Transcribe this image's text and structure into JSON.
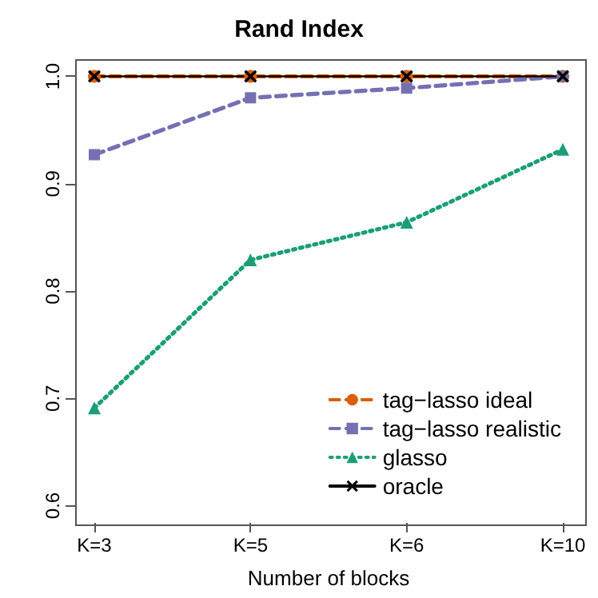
{
  "chart_data": {
    "type": "line",
    "title": "Rand Index",
    "xlabel": "Number of blocks",
    "categories": [
      "K=3",
      "K=5",
      "K=6",
      "K=10"
    ],
    "series": [
      {
        "name": "tag−lasso ideal",
        "color": "#d95f02",
        "values": [
          1.0,
          1.0,
          1.0,
          1.0
        ],
        "marker": "circle",
        "line_style": "dashed"
      },
      {
        "name": "tag−lasso realistic",
        "color": "#7570b3",
        "values": [
          0.927,
          0.98,
          0.989,
          1.0
        ],
        "marker": "square",
        "line_style": "dashed"
      },
      {
        "name": "glasso",
        "color": "#1b9e77",
        "values": [
          0.691,
          0.829,
          0.864,
          0.932
        ],
        "marker": "triangle",
        "line_style": "dotted"
      },
      {
        "name": "oracle",
        "color": "#000000",
        "values": [
          1.0,
          1.0,
          1.0,
          1.0
        ],
        "marker": "cross",
        "line_style": "solid"
      }
    ],
    "ylim": [
      0.584,
      1.016
    ],
    "yticks": [
      0.6,
      0.7,
      0.8,
      0.9,
      {
        "value": 1,
        "label": "1.0"
      }
    ],
    "grid": false,
    "legend": "bottom right"
  }
}
